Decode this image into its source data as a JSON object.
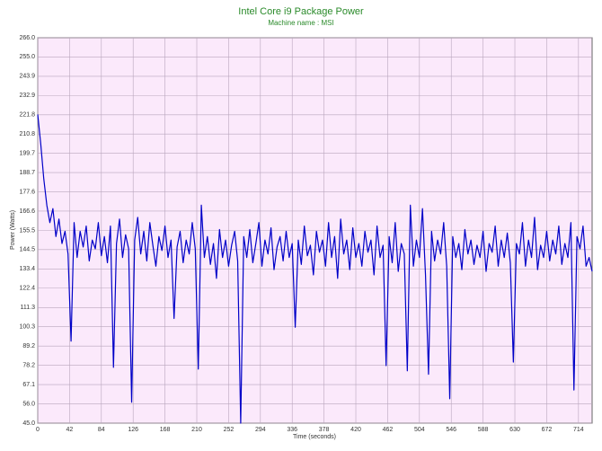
{
  "chart_data": {
    "type": "line",
    "title": "Intel Core i9 Package Power",
    "subtitle": "Machine name : MSI",
    "x_label": "Time (seconds)",
    "y_label": "Power (Watts)",
    "grid": true,
    "xlim": [
      0,
      732
    ],
    "xticks": [
      0,
      42,
      84,
      126,
      168,
      210,
      252,
      294,
      336,
      378,
      420,
      462,
      504,
      546,
      588,
      630,
      672,
      714
    ],
    "ylim": [
      45,
      266
    ],
    "yticks": [
      {
        "value": 45,
        "label": "45.0"
      },
      {
        "value": 56,
        "label": "56.0"
      },
      67.1,
      78.2,
      89.2,
      100.3,
      111.3,
      122.4,
      133.4,
      144.5,
      155.5,
      166.6,
      177.6,
      188.7,
      199.7,
      210.8,
      221.8,
      232.9,
      243.9,
      {
        "value": 255,
        "label": "255.0"
      },
      {
        "value": 266,
        "label": "266.0"
      }
    ],
    "x": [
      0,
      4,
      8,
      12,
      16,
      20,
      24,
      28,
      32,
      36,
      40,
      44,
      48,
      52,
      56,
      60,
      64,
      68,
      72,
      76,
      80,
      84,
      88,
      92,
      96,
      100,
      104,
      108,
      112,
      116,
      120,
      124,
      128,
      132,
      136,
      140,
      144,
      148,
      152,
      156,
      160,
      164,
      168,
      172,
      176,
      180,
      184,
      188,
      192,
      196,
      200,
      204,
      208,
      212,
      216,
      220,
      224,
      228,
      232,
      236,
      240,
      244,
      248,
      252,
      256,
      260,
      264,
      268,
      272,
      276,
      280,
      284,
      288,
      292,
      296,
      300,
      304,
      308,
      312,
      316,
      320,
      324,
      328,
      332,
      336,
      340,
      344,
      348,
      352,
      356,
      360,
      364,
      368,
      372,
      376,
      380,
      384,
      388,
      392,
      396,
      400,
      404,
      408,
      412,
      416,
      420,
      424,
      428,
      432,
      436,
      440,
      444,
      448,
      452,
      456,
      460,
      464,
      468,
      472,
      476,
      480,
      484,
      488,
      492,
      496,
      500,
      504,
      508,
      512,
      516,
      520,
      524,
      528,
      532,
      536,
      540,
      544,
      548,
      552,
      556,
      560,
      564,
      568,
      572,
      576,
      580,
      584,
      588,
      592,
      596,
      600,
      604,
      608,
      612,
      616,
      620,
      624,
      628,
      632,
      636,
      640,
      644,
      648,
      652,
      656,
      660,
      664,
      668,
      672,
      676,
      680,
      684,
      688,
      692,
      696,
      700,
      704,
      708,
      712,
      716,
      720,
      724,
      728,
      732
    ],
    "series": [
      {
        "name": "Package Power",
        "color": "#0000c8",
        "values": [
          222,
          205,
          185,
          170,
          160,
          168,
          152,
          162,
          148,
          155,
          142,
          92,
          160,
          140,
          155,
          146,
          158,
          138,
          150,
          145,
          160,
          141,
          152,
          137,
          158,
          77,
          148,
          162,
          140,
          153,
          145,
          57,
          150,
          163,
          142,
          155,
          138,
          160,
          147,
          135,
          152,
          144,
          158,
          140,
          150,
          105,
          146,
          155,
          137,
          150,
          142,
          160,
          145,
          76,
          170,
          140,
          152,
          136,
          148,
          128,
          156,
          140,
          150,
          135,
          147,
          155,
          138,
          45,
          152,
          140,
          156,
          137,
          148,
          160,
          135,
          150,
          142,
          157,
          133,
          146,
          152,
          138,
          155,
          140,
          148,
          100,
          150,
          136,
          158,
          141,
          147,
          130,
          155,
          143,
          150,
          135,
          160,
          140,
          152,
          128,
          162,
          142,
          150,
          133,
          157,
          140,
          148,
          135,
          155,
          143,
          150,
          130,
          158,
          140,
          147,
          78,
          152,
          137,
          160,
          132,
          148,
          142,
          75,
          170,
          135,
          150,
          140,
          168,
          130,
          73,
          155,
          138,
          150,
          142,
          160,
          135,
          59,
          152,
          140,
          148,
          133,
          156,
          142,
          150,
          136,
          147,
          140,
          155,
          132,
          148,
          143,
          158,
          135,
          150,
          140,
          154,
          137,
          80,
          148,
          142,
          160,
          135,
          150,
          140,
          163,
          133,
          147,
          140,
          155,
          138,
          150,
          142,
          158,
          136,
          148,
          140,
          160,
          64,
          152,
          145,
          158,
          135,
          140,
          132
        ]
      }
    ]
  }
}
